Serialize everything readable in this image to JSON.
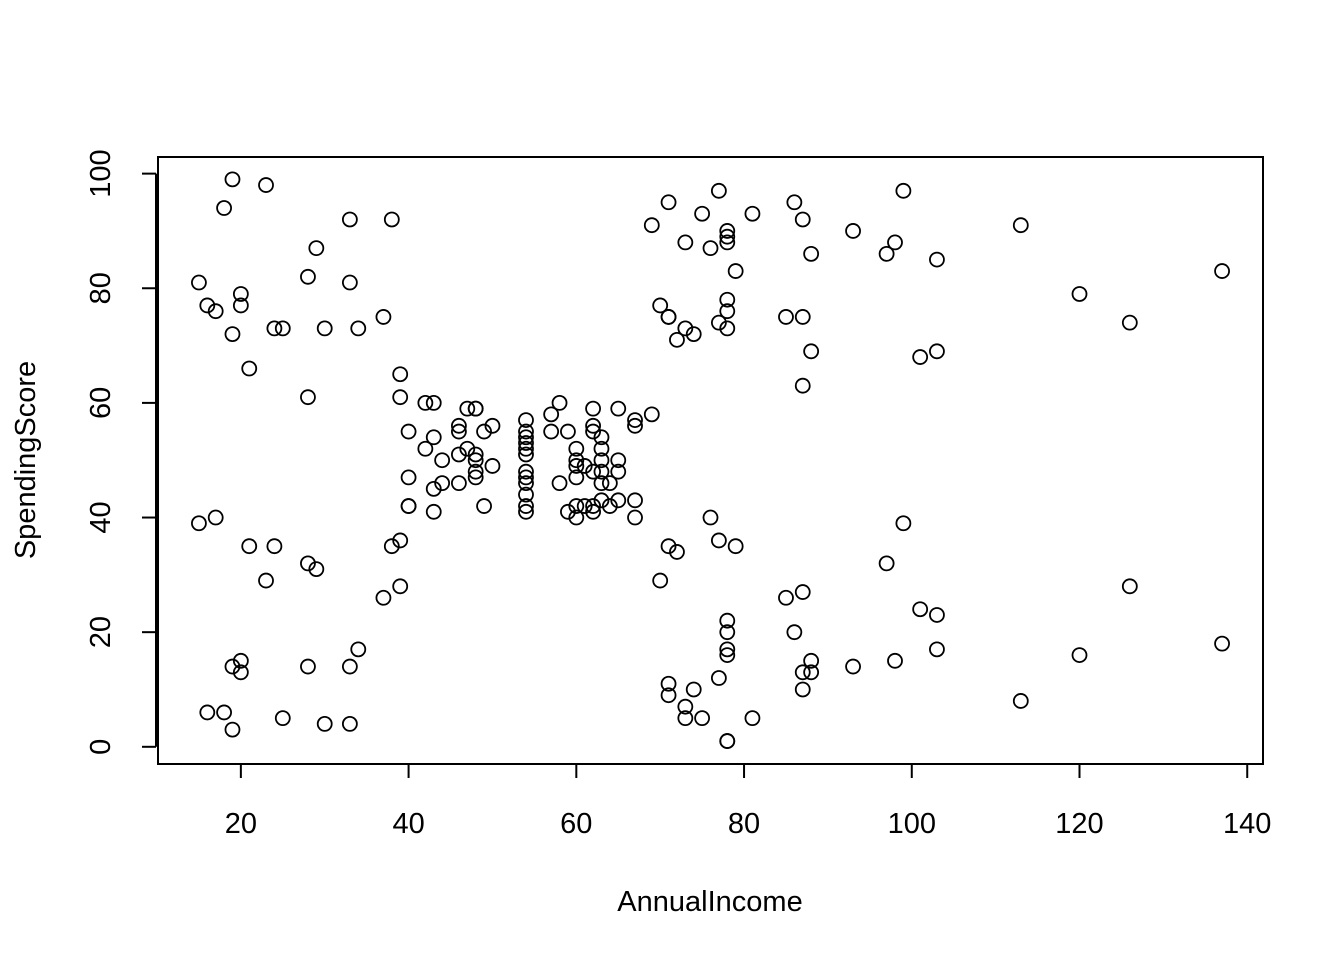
{
  "chart_data": {
    "type": "scatter",
    "title": "",
    "xlabel": "AnnualIncome",
    "ylabel": "SpendingScore",
    "xlim": [
      10.12,
      141.88
    ],
    "ylim": [
      -3.0,
      102.9
    ],
    "xticks": [
      20,
      40,
      60,
      80,
      100,
      120,
      140
    ],
    "yticks": [
      0,
      20,
      40,
      60,
      80,
      100
    ],
    "grid": false,
    "marker": "open-circle",
    "point_color": "#000000",
    "points": [
      [
        15,
        39
      ],
      [
        15,
        81
      ],
      [
        16,
        6
      ],
      [
        16,
        77
      ],
      [
        17,
        40
      ],
      [
        17,
        76
      ],
      [
        18,
        6
      ],
      [
        18,
        94
      ],
      [
        19,
        3
      ],
      [
        19,
        72
      ],
      [
        19,
        14
      ],
      [
        19,
        99
      ],
      [
        20,
        15
      ],
      [
        20,
        77
      ],
      [
        20,
        13
      ],
      [
        20,
        79
      ],
      [
        21,
        35
      ],
      [
        21,
        66
      ],
      [
        23,
        29
      ],
      [
        23,
        98
      ],
      [
        24,
        35
      ],
      [
        24,
        73
      ],
      [
        25,
        5
      ],
      [
        25,
        73
      ],
      [
        28,
        14
      ],
      [
        28,
        82
      ],
      [
        28,
        32
      ],
      [
        28,
        61
      ],
      [
        29,
        31
      ],
      [
        29,
        87
      ],
      [
        30,
        4
      ],
      [
        30,
        73
      ],
      [
        33,
        4
      ],
      [
        33,
        92
      ],
      [
        33,
        14
      ],
      [
        33,
        81
      ],
      [
        34,
        17
      ],
      [
        34,
        73
      ],
      [
        37,
        26
      ],
      [
        37,
        75
      ],
      [
        38,
        35
      ],
      [
        38,
        92
      ],
      [
        39,
        36
      ],
      [
        39,
        61
      ],
      [
        39,
        28
      ],
      [
        39,
        65
      ],
      [
        40,
        55
      ],
      [
        40,
        47
      ],
      [
        40,
        42
      ],
      [
        40,
        42
      ],
      [
        42,
        52
      ],
      [
        42,
        60
      ],
      [
        43,
        54
      ],
      [
        43,
        60
      ],
      [
        43,
        45
      ],
      [
        43,
        41
      ],
      [
        44,
        50
      ],
      [
        44,
        46
      ],
      [
        46,
        51
      ],
      [
        46,
        46
      ],
      [
        46,
        56
      ],
      [
        46,
        55
      ],
      [
        47,
        52
      ],
      [
        47,
        59
      ],
      [
        48,
        51
      ],
      [
        48,
        59
      ],
      [
        48,
        50
      ],
      [
        48,
        48
      ],
      [
        48,
        59
      ],
      [
        48,
        47
      ],
      [
        49,
        55
      ],
      [
        49,
        42
      ],
      [
        50,
        49
      ],
      [
        50,
        56
      ],
      [
        54,
        47
      ],
      [
        54,
        54
      ],
      [
        54,
        53
      ],
      [
        54,
        48
      ],
      [
        54,
        52
      ],
      [
        54,
        42
      ],
      [
        54,
        51
      ],
      [
        54,
        55
      ],
      [
        54,
        41
      ],
      [
        54,
        44
      ],
      [
        54,
        57
      ],
      [
        54,
        46
      ],
      [
        57,
        58
      ],
      [
        57,
        55
      ],
      [
        58,
        60
      ],
      [
        58,
        46
      ],
      [
        59,
        55
      ],
      [
        59,
        41
      ],
      [
        60,
        49
      ],
      [
        60,
        40
      ],
      [
        60,
        42
      ],
      [
        60,
        52
      ],
      [
        60,
        47
      ],
      [
        60,
        50
      ],
      [
        61,
        42
      ],
      [
        61,
        49
      ],
      [
        62,
        41
      ],
      [
        62,
        48
      ],
      [
        62,
        59
      ],
      [
        62,
        55
      ],
      [
        62,
        56
      ],
      [
        62,
        42
      ],
      [
        63,
        50
      ],
      [
        63,
        46
      ],
      [
        63,
        43
      ],
      [
        63,
        48
      ],
      [
        63,
        52
      ],
      [
        63,
        54
      ],
      [
        64,
        42
      ],
      [
        64,
        46
      ],
      [
        65,
        48
      ],
      [
        65,
        50
      ],
      [
        65,
        43
      ],
      [
        65,
        59
      ],
      [
        67,
        43
      ],
      [
        67,
        57
      ],
      [
        67,
        56
      ],
      [
        67,
        40
      ],
      [
        69,
        58
      ],
      [
        69,
        91
      ],
      [
        70,
        29
      ],
      [
        70,
        77
      ],
      [
        71,
        35
      ],
      [
        71,
        95
      ],
      [
        71,
        11
      ],
      [
        71,
        75
      ],
      [
        71,
        9
      ],
      [
        71,
        75
      ],
      [
        72,
        34
      ],
      [
        72,
        71
      ],
      [
        73,
        5
      ],
      [
        73,
        88
      ],
      [
        73,
        7
      ],
      [
        73,
        73
      ],
      [
        74,
        10
      ],
      [
        74,
        72
      ],
      [
        75,
        5
      ],
      [
        75,
        93
      ],
      [
        76,
        40
      ],
      [
        76,
        87
      ],
      [
        77,
        12
      ],
      [
        77,
        97
      ],
      [
        77,
        36
      ],
      [
        77,
        74
      ],
      [
        78,
        22
      ],
      [
        78,
        90
      ],
      [
        78,
        17
      ],
      [
        78,
        88
      ],
      [
        78,
        20
      ],
      [
        78,
        76
      ],
      [
        78,
        16
      ],
      [
        78,
        89
      ],
      [
        78,
        1
      ],
      [
        78,
        78
      ],
      [
        78,
        1
      ],
      [
        78,
        73
      ],
      [
        79,
        35
      ],
      [
        79,
        83
      ],
      [
        81,
        5
      ],
      [
        81,
        93
      ],
      [
        85,
        26
      ],
      [
        85,
        75
      ],
      [
        86,
        20
      ],
      [
        86,
        95
      ],
      [
        87,
        27
      ],
      [
        87,
        63
      ],
      [
        87,
        13
      ],
      [
        87,
        75
      ],
      [
        87,
        10
      ],
      [
        87,
        92
      ],
      [
        88,
        13
      ],
      [
        88,
        86
      ],
      [
        88,
        15
      ],
      [
        88,
        69
      ],
      [
        93,
        14
      ],
      [
        93,
        90
      ],
      [
        97,
        32
      ],
      [
        97,
        86
      ],
      [
        98,
        15
      ],
      [
        98,
        88
      ],
      [
        99,
        39
      ],
      [
        99,
        97
      ],
      [
        101,
        24
      ],
      [
        101,
        68
      ],
      [
        103,
        17
      ],
      [
        103,
        85
      ],
      [
        103,
        23
      ],
      [
        103,
        69
      ],
      [
        113,
        8
      ],
      [
        113,
        91
      ],
      [
        120,
        16
      ],
      [
        120,
        79
      ],
      [
        126,
        28
      ],
      [
        126,
        74
      ],
      [
        137,
        18
      ],
      [
        137,
        83
      ]
    ]
  }
}
